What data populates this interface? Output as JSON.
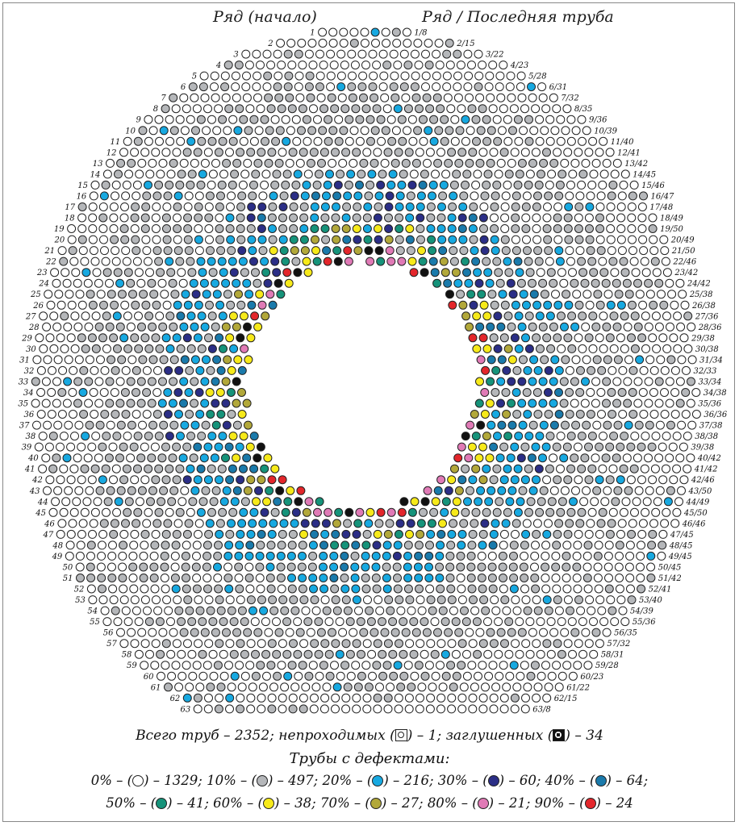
{
  "header": {
    "left": "Ряд (начало)",
    "right": "Ряд / Последняя труба"
  },
  "rows": [
    {
      "n": "1",
      "e": "1/8"
    },
    {
      "n": "2",
      "e": "2/15"
    },
    {
      "n": "3",
      "e": "3/22"
    },
    {
      "n": "4",
      "e": "4/23"
    },
    {
      "n": "5",
      "e": "5/28"
    },
    {
      "n": "6",
      "e": "6/31"
    },
    {
      "n": "7",
      "e": "7/32"
    },
    {
      "n": "8",
      "e": "8/35"
    },
    {
      "n": "9",
      "e": "9/36"
    },
    {
      "n": "10",
      "e": "10/39"
    },
    {
      "n": "11",
      "e": "11/40"
    },
    {
      "n": "12",
      "e": "12/41"
    },
    {
      "n": "13",
      "e": "13/42"
    },
    {
      "n": "14",
      "e": "14/45"
    },
    {
      "n": "15",
      "e": "15/46"
    },
    {
      "n": "16",
      "e": "16/47"
    },
    {
      "n": "17",
      "e": "17/48"
    },
    {
      "n": "18",
      "e": "18/49"
    },
    {
      "n": "19",
      "e": "19/50"
    },
    {
      "n": "20",
      "e": "20/49"
    },
    {
      "n": "21",
      "e": "21/50"
    },
    {
      "n": "22",
      "e": "22/46"
    },
    {
      "n": "23",
      "e": "23/42"
    },
    {
      "n": "24",
      "e": "24/42"
    },
    {
      "n": "25",
      "e": "25/38"
    },
    {
      "n": "26",
      "e": "26/38"
    },
    {
      "n": "27",
      "e": "27/36"
    },
    {
      "n": "28",
      "e": "28/36"
    },
    {
      "n": "29",
      "e": "29/38"
    },
    {
      "n": "30",
      "e": "30/38"
    },
    {
      "n": "31",
      "e": "31/34"
    },
    {
      "n": "32",
      "e": "32/33"
    },
    {
      "n": "33",
      "e": "33/34"
    },
    {
      "n": "34",
      "e": "34/38"
    },
    {
      "n": "35",
      "e": "35/36"
    },
    {
      "n": "36",
      "e": "36/36"
    },
    {
      "n": "37",
      "e": "37/38"
    },
    {
      "n": "38",
      "e": "38/38"
    },
    {
      "n": "39",
      "e": "39/38"
    },
    {
      "n": "40",
      "e": "40/42"
    },
    {
      "n": "41",
      "e": "41/42"
    },
    {
      "n": "42",
      "e": "42/46"
    },
    {
      "n": "43",
      "e": "43/50"
    },
    {
      "n": "44",
      "e": "44/49"
    },
    {
      "n": "45",
      "e": "45/50"
    },
    {
      "n": "46",
      "e": "46/46"
    },
    {
      "n": "47",
      "e": "47/45"
    },
    {
      "n": "48",
      "e": "48/45"
    },
    {
      "n": "49",
      "e": "49/45"
    },
    {
      "n": "50",
      "e": "50/45"
    },
    {
      "n": "51",
      "e": "51/42"
    },
    {
      "n": "52",
      "e": "52/41"
    },
    {
      "n": "53",
      "e": "53/40"
    },
    {
      "n": "54",
      "e": "54/39"
    },
    {
      "n": "55",
      "e": "55/36"
    },
    {
      "n": "56",
      "e": "56/35"
    },
    {
      "n": "57",
      "e": "57/32"
    },
    {
      "n": "58",
      "e": "58/31"
    },
    {
      "n": "59",
      "e": "59/28"
    },
    {
      "n": "60",
      "e": "60/23"
    },
    {
      "n": "61",
      "e": "61/22"
    },
    {
      "n": "62",
      "e": "62/15"
    },
    {
      "n": "63",
      "e": "63/8"
    }
  ],
  "colors": {
    "p0": "#ffffff",
    "p10": "#b5b7ba",
    "p20": "#17a9e1",
    "p30": "#2b2e86",
    "p40": "#1a7aab",
    "p50": "#16937a",
    "p60": "#f7ea1a",
    "p70": "#b2a83a",
    "p80": "#e07ab6",
    "p90": "#e3262b",
    "plugged": "#111111",
    "blocked": "#ffffff"
  },
  "legend": {
    "total_label": "Всего труб – 2352; непроходимых (",
    "total_mid": ") – 1; заглушенных (",
    "total_end": ") – 34",
    "title": "Трубы с дефектами:",
    "items": [
      {
        "pct": "0%",
        "count": "1329",
        "color": "#ffffff"
      },
      {
        "pct": "10%",
        "count": "497",
        "color": "#b5b7ba"
      },
      {
        "pct": "20%",
        "count": "216",
        "color": "#17a9e1"
      },
      {
        "pct": "30%",
        "count": "60",
        "color": "#2b2e86"
      },
      {
        "pct": "40%",
        "count": "64",
        "color": "#1a7aab"
      },
      {
        "pct": "50%",
        "count": "41",
        "color": "#16937a"
      },
      {
        "pct": "60%",
        "count": "38",
        "color": "#f7ea1a"
      },
      {
        "pct": "70%",
        "count": "27",
        "color": "#b2a83a"
      },
      {
        "pct": "80%",
        "count": "21",
        "color": "#e07ab6"
      },
      {
        "pct": "90%",
        "count": "24",
        "color": "#e3262b"
      }
    ]
  }
}
